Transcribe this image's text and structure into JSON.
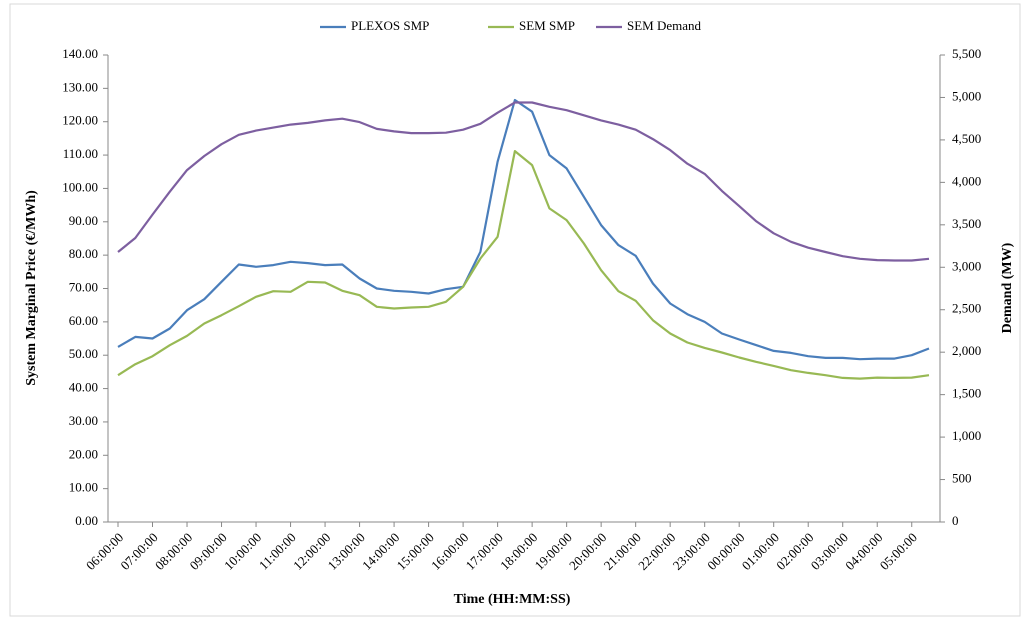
{
  "chart_data": {
    "type": "line",
    "xlabel": "Time (HH:MM:SS)",
    "ylabel": "System  Marginal Price  (€/MWh)",
    "y2label": "Demand  (MW)",
    "grid": false,
    "legend": "top",
    "categories": [
      "06:00:00",
      null,
      "07:00:00",
      null,
      "08:00:00",
      null,
      "09:00:00",
      null,
      "10:00:00",
      null,
      "11:00:00",
      null,
      "12:00:00",
      null,
      "13:00:00",
      null,
      "14:00:00",
      null,
      "15:00:00",
      null,
      "16:00:00",
      null,
      "17:00:00",
      null,
      "18:00:00",
      null,
      "19:00:00",
      null,
      "20:00:00",
      null,
      "21:00:00",
      null,
      "22:00:00",
      null,
      "23:00:00",
      null,
      "00:00:00",
      null,
      "01:00:00",
      null,
      "02:00:00",
      null,
      "03:00:00",
      null,
      "04:00:00",
      null,
      "05:00:00",
      null
    ],
    "ylim": [
      0,
      140
    ],
    "yticks": [
      {
        "value": 0,
        "label": "0.00"
      },
      {
        "value": 10,
        "label": "10.00"
      },
      {
        "value": 20,
        "label": "20.00"
      },
      {
        "value": 30,
        "label": "30.00"
      },
      {
        "value": 40,
        "label": "40.00"
      },
      {
        "value": 50,
        "label": "50.00"
      },
      {
        "value": 60,
        "label": "60.00"
      },
      {
        "value": 70,
        "label": "70.00"
      },
      {
        "value": 80,
        "label": "80.00"
      },
      {
        "value": 90,
        "label": "90.00"
      },
      {
        "value": 100,
        "label": "100.00"
      },
      {
        "value": 110,
        "label": "110.00"
      },
      {
        "value": 120,
        "label": "120.00"
      },
      {
        "value": 130,
        "label": "130.00"
      },
      {
        "value": 140,
        "label": "140.00"
      }
    ],
    "y2lim": [
      0,
      5500
    ],
    "y2ticks": [
      0,
      500,
      {
        "value": 1000,
        "label": "1,000"
      },
      {
        "value": 1500,
        "label": "1,500"
      },
      {
        "value": 2000,
        "label": "2,000"
      },
      {
        "value": 2500,
        "label": "2,500"
      },
      {
        "value": 3000,
        "label": "3,000"
      },
      {
        "value": 3500,
        "label": "3,500"
      },
      {
        "value": 4000,
        "label": "4,000"
      },
      {
        "value": 4500,
        "label": "4,500"
      },
      {
        "value": 5000,
        "label": "5,000"
      },
      {
        "value": 5500,
        "label": "5,500"
      }
    ],
    "series": [
      {
        "name": "PLEXOS SMP",
        "color": "#4a7ebb",
        "values": [
          52.5,
          55.5,
          55,
          58,
          63.5,
          66.8,
          72,
          77.2,
          76.5,
          77,
          78,
          77.6,
          77,
          77.2,
          73,
          70,
          69.3,
          69,
          68.5,
          69.8,
          70.5,
          81,
          108,
          126.5,
          123,
          110,
          106,
          97.5,
          89,
          83,
          79.8,
          71.5,
          65.5,
          62.3,
          60,
          56.5,
          54.7,
          53,
          51.3,
          50.7,
          49.7,
          49.2,
          49.2,
          48.8,
          49,
          49,
          50,
          52
        ]
      },
      {
        "name": "SEM SMP",
        "color": "#98b954",
        "values": [
          44,
          47.3,
          49.7,
          53,
          55.8,
          59.5,
          62,
          64.7,
          67.5,
          69.2,
          69,
          72,
          71.8,
          69.3,
          68,
          64.5,
          64,
          64.3,
          64.5,
          66,
          70.5,
          79,
          85.5,
          111.2,
          107,
          94,
          90.5,
          83.5,
          75.5,
          69.2,
          66.3,
          60.5,
          56.5,
          53.8,
          52.2,
          50.8,
          49.3,
          48,
          46.8,
          45.5,
          44.7,
          44,
          43.2,
          43,
          43.3,
          43.2,
          43.3,
          44
        ]
      },
      {
        "name": "SEM Demand",
        "color": "#7d5fa0",
        "axis": "y2",
        "values": [
          3180,
          3345,
          3620,
          3890,
          4145,
          4310,
          4450,
          4560,
          4610,
          4645,
          4680,
          4700,
          4730,
          4750,
          4710,
          4630,
          4600,
          4580,
          4580,
          4585,
          4620,
          4690,
          4820,
          4940,
          4940,
          4890,
          4850,
          4790,
          4730,
          4680,
          4620,
          4510,
          4380,
          4220,
          4100,
          3900,
          3720,
          3540,
          3400,
          3300,
          3230,
          3180,
          3130,
          3100,
          3085,
          3080,
          3080,
          3100
        ]
      }
    ]
  }
}
